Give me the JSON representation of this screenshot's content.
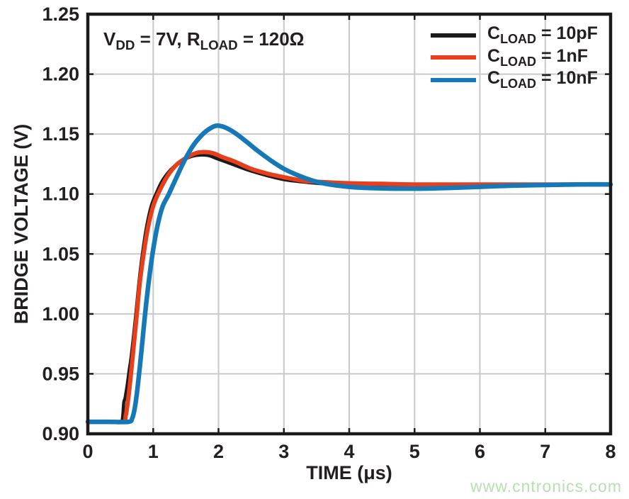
{
  "chart_data": {
    "type": "line",
    "title": "",
    "xlabel": "TIME (μs)",
    "ylabel": "BRIDGE VOLTAGE (V)",
    "grid": true,
    "legend_position": "top-right-inside",
    "x_axis": {
      "min": 0,
      "max": 8,
      "ticks": [
        {
          "value": 0,
          "label": "0"
        },
        {
          "value": 1,
          "label": "1"
        },
        {
          "value": 2,
          "label": "2"
        },
        {
          "value": 3,
          "label": "3"
        },
        {
          "value": 4,
          "label": "4"
        },
        {
          "value": 5,
          "label": "5"
        },
        {
          "value": 6,
          "label": "6"
        },
        {
          "value": 7,
          "label": "7"
        },
        {
          "value": 8,
          "label": "8"
        }
      ]
    },
    "y_axis": {
      "min": 0.9,
      "max": 1.25,
      "ticks": [
        {
          "value": 0.9,
          "label": "0.90"
        },
        {
          "value": 0.95,
          "label": "0.95"
        },
        {
          "value": 1.0,
          "label": "1.00"
        },
        {
          "value": 1.05,
          "label": "1.05"
        },
        {
          "value": 1.1,
          "label": "1.10"
        },
        {
          "value": 1.15,
          "label": "1.15"
        },
        {
          "value": 1.2,
          "label": "1.20"
        },
        {
          "value": 1.25,
          "label": "1.25"
        }
      ]
    },
    "series": [
      {
        "id": "cload-10pf",
        "name": "C_LOAD = 10pF",
        "color": "#1a1a1a",
        "width": 4.5,
        "points": [
          [
            0.0,
            0.91
          ],
          [
            0.3,
            0.91
          ],
          [
            0.5,
            0.91
          ],
          [
            0.53,
            0.913
          ],
          [
            0.55,
            0.926
          ],
          [
            0.57,
            0.93
          ],
          [
            0.6,
            0.94
          ],
          [
            0.63,
            0.952
          ],
          [
            0.66,
            0.963
          ],
          [
            0.7,
            0.982
          ],
          [
            0.74,
            1.003
          ],
          [
            0.79,
            1.03
          ],
          [
            0.84,
            1.052
          ],
          [
            0.9,
            1.073
          ],
          [
            0.97,
            1.09
          ],
          [
            1.05,
            1.101
          ],
          [
            1.15,
            1.112
          ],
          [
            1.3,
            1.122
          ],
          [
            1.45,
            1.128
          ],
          [
            1.6,
            1.1315
          ],
          [
            1.72,
            1.1325
          ],
          [
            1.85,
            1.132
          ],
          [
            2.0,
            1.129
          ],
          [
            2.2,
            1.125
          ],
          [
            2.45,
            1.12
          ],
          [
            2.7,
            1.116
          ],
          [
            3.0,
            1.112
          ],
          [
            3.3,
            1.11
          ],
          [
            3.6,
            1.1085
          ],
          [
            4.0,
            1.1075
          ],
          [
            4.5,
            1.107
          ],
          [
            5.0,
            1.1072
          ],
          [
            5.5,
            1.1075
          ],
          [
            6.0,
            1.1078
          ],
          [
            7.0,
            1.108
          ],
          [
            8.0,
            1.108
          ]
        ]
      },
      {
        "id": "cload-1nf",
        "name": "C_LOAD = 1nF",
        "color": "#e83e1c",
        "width": 6,
        "points": [
          [
            0.0,
            0.91
          ],
          [
            0.3,
            0.91
          ],
          [
            0.54,
            0.91
          ],
          [
            0.58,
            0.915
          ],
          [
            0.62,
            0.93
          ],
          [
            0.66,
            0.95
          ],
          [
            0.7,
            0.972
          ],
          [
            0.75,
            1.0
          ],
          [
            0.8,
            1.028
          ],
          [
            0.86,
            1.052
          ],
          [
            0.92,
            1.072
          ],
          [
            1.0,
            1.09
          ],
          [
            1.1,
            1.103
          ],
          [
            1.22,
            1.115
          ],
          [
            1.35,
            1.124
          ],
          [
            1.5,
            1.13
          ],
          [
            1.65,
            1.134
          ],
          [
            1.78,
            1.135
          ],
          [
            1.92,
            1.134
          ],
          [
            2.05,
            1.131
          ],
          [
            2.25,
            1.127
          ],
          [
            2.5,
            1.121
          ],
          [
            2.75,
            1.117
          ],
          [
            3.0,
            1.114
          ],
          [
            3.3,
            1.111
          ],
          [
            3.6,
            1.11
          ],
          [
            4.0,
            1.109
          ],
          [
            4.5,
            1.1085
          ],
          [
            5.0,
            1.108
          ],
          [
            6.0,
            1.108
          ],
          [
            7.0,
            1.108
          ],
          [
            8.0,
            1.108
          ]
        ]
      },
      {
        "id": "cload-10nf",
        "name": "C_LOAD = 10nF",
        "color": "#1778b8",
        "width": 6.5,
        "points": [
          [
            0.0,
            0.91
          ],
          [
            0.3,
            0.91
          ],
          [
            0.62,
            0.91
          ],
          [
            0.68,
            0.913
          ],
          [
            0.72,
            0.922
          ],
          [
            0.76,
            0.938
          ],
          [
            0.8,
            0.958
          ],
          [
            0.84,
            0.98
          ],
          [
            0.88,
            1.002
          ],
          [
            0.93,
            1.026
          ],
          [
            0.99,
            1.05
          ],
          [
            1.06,
            1.072
          ],
          [
            1.14,
            1.089
          ],
          [
            1.24,
            1.1
          ],
          [
            1.35,
            1.113
          ],
          [
            1.48,
            1.128
          ],
          [
            1.62,
            1.141
          ],
          [
            1.76,
            1.15
          ],
          [
            1.88,
            1.155
          ],
          [
            1.98,
            1.157
          ],
          [
            2.1,
            1.1555
          ],
          [
            2.25,
            1.151
          ],
          [
            2.42,
            1.144
          ],
          [
            2.6,
            1.136
          ],
          [
            2.8,
            1.128
          ],
          [
            3.0,
            1.121
          ],
          [
            3.2,
            1.116
          ],
          [
            3.45,
            1.111
          ],
          [
            3.7,
            1.108
          ],
          [
            4.0,
            1.106
          ],
          [
            4.3,
            1.105
          ],
          [
            4.7,
            1.1045
          ],
          [
            5.1,
            1.1045
          ],
          [
            5.5,
            1.105
          ],
          [
            6.0,
            1.106
          ],
          [
            6.5,
            1.107
          ],
          [
            7.0,
            1.1075
          ],
          [
            7.5,
            1.108
          ],
          [
            8.0,
            1.108
          ]
        ]
      }
    ]
  },
  "annotation": {
    "part1": "V",
    "sub1": "DD",
    "part2": " = 7V, R",
    "sub2": "LOAD",
    "part3": " = 120Ω"
  },
  "legend": {
    "items": [
      {
        "pre": "C",
        "sub": "LOAD",
        "post": " = 10pF",
        "color": "#1a1a1a"
      },
      {
        "pre": "C",
        "sub": "LOAD",
        "post": " = 1nF",
        "color": "#e83e1c"
      },
      {
        "pre": "C",
        "sub": "LOAD",
        "post": " = 10nF",
        "color": "#1778b8"
      }
    ]
  },
  "axes": {
    "x_title": "TIME (μs)",
    "y_title": "BRIDGE VOLTAGE (V)"
  },
  "watermark": {
    "text": "www.cntronics.com",
    "color": "#b7e0b0"
  },
  "colors": {
    "background": "#ffffff",
    "grid": "#c8c9cb",
    "border": "#1a1a1a",
    "text": "#231f20"
  }
}
